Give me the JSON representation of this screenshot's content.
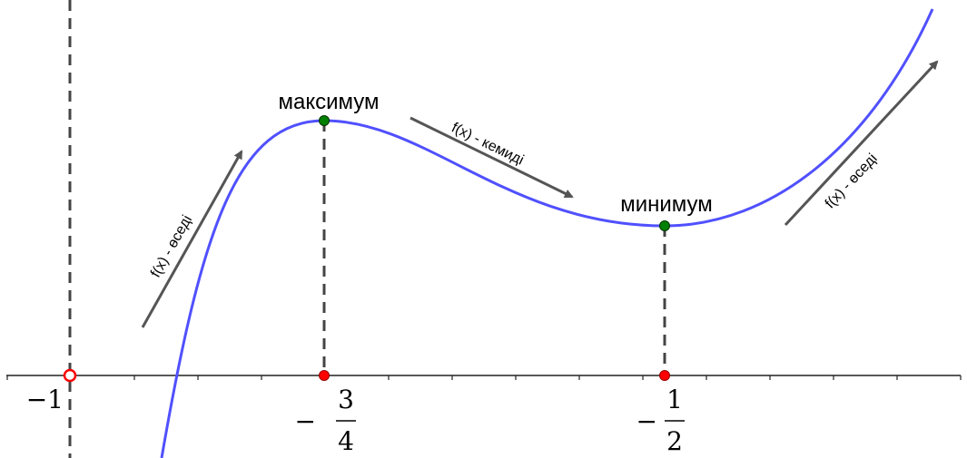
{
  "labels": {
    "maximum": "максимум",
    "minimum": "минимум",
    "increasing_left": "f(x) - өседі",
    "decreasing": "f(x) - кемиді",
    "increasing_right": "f(x) - өседі"
  },
  "axis_labels": {
    "minus_one": "−1",
    "minus_sign": "−",
    "three": "3",
    "four": "4",
    "one": "1",
    "two": "2"
  },
  "colors": {
    "curve": "#5050ff",
    "extremum_point": "#008000",
    "axis_point": "#ff0000",
    "arrow": "#555555",
    "dashed": "#444444"
  }
}
